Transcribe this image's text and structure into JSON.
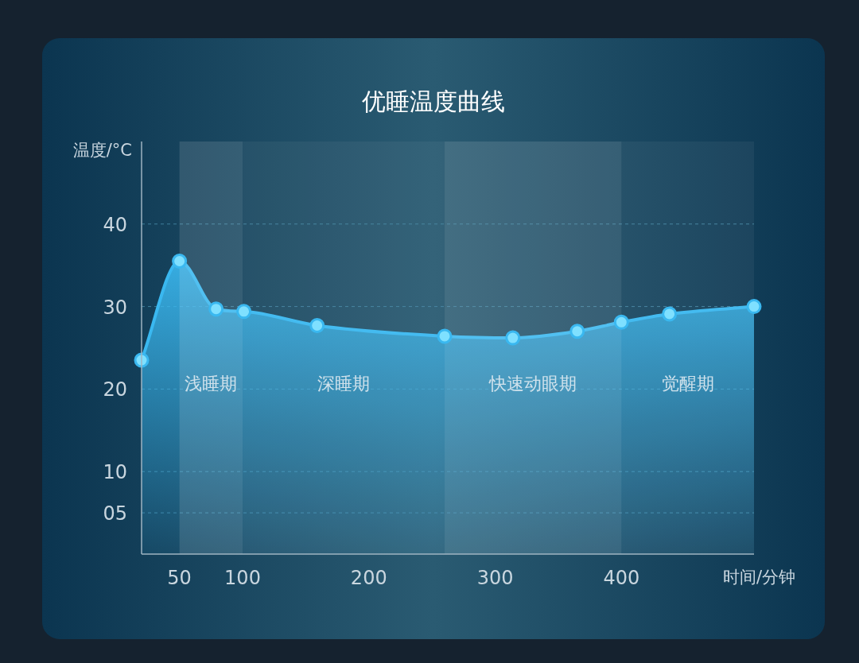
{
  "chart_data": {
    "type": "area",
    "title": "优睡温度曲线",
    "xlabel": "时间/分钟",
    "ylabel": "温度/°C",
    "x": [
      20,
      50,
      79,
      101,
      159,
      260,
      314,
      365,
      400,
      438,
      505
    ],
    "values": [
      23.5,
      35.5,
      29.7,
      29.4,
      27.7,
      26.4,
      26.2,
      27.0,
      28.1,
      29.1,
      30.0
    ],
    "color": "#3ab8f0",
    "marker": "circle",
    "grid": "y",
    "xlim": [
      20,
      505
    ],
    "xticks": [
      50,
      100,
      200,
      300,
      400
    ],
    "ylim": [
      0,
      50
    ],
    "yticks": [
      {
        "value": 5,
        "label": "05"
      },
      10,
      20,
      30,
      40
    ],
    "bands": [
      {
        "axis": "x",
        "from": 50,
        "to": 100,
        "label": "浅睡期"
      },
      {
        "axis": "x",
        "from": 100,
        "to": 260,
        "label": "深睡期"
      },
      {
        "axis": "x",
        "from": 260,
        "to": 400,
        "label": "快速动眼期"
      },
      {
        "axis": "x",
        "from": 400,
        "to": 505,
        "label": "觉醒期"
      }
    ]
  }
}
